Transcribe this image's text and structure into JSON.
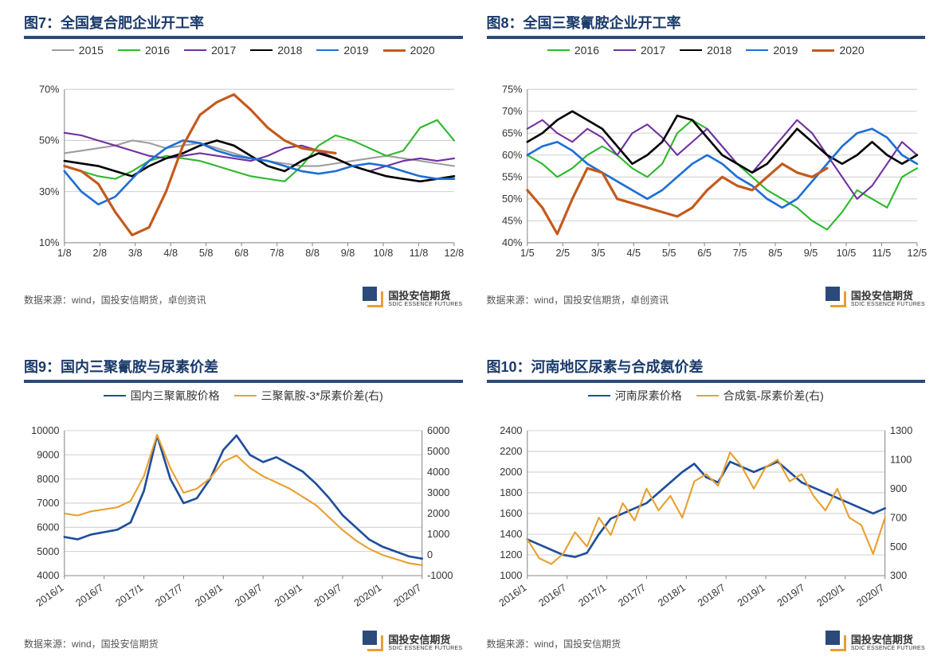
{
  "logo": {
    "cn": "国投安信期货",
    "en": "SDIC ESSENCE FUTURES"
  },
  "panels": [
    {
      "id": "chart7",
      "title": "图7：全国复合肥企业开工率",
      "source": "数据来源：wind，国投安信期货，卓创资讯",
      "type": "line",
      "y_unit": "%",
      "ylim": [
        10,
        70
      ],
      "ytick_step": 20,
      "x_labels": [
        "1/8",
        "2/8",
        "3/8",
        "4/8",
        "5/8",
        "6/8",
        "7/8",
        "8/8",
        "9/8",
        "10/8",
        "11/8",
        "12/8"
      ],
      "series": [
        {
          "name": "2015",
          "color": "#9e9e9e",
          "width": 2,
          "values": [
            45,
            46,
            47,
            48,
            50,
            49,
            47,
            48,
            49,
            47,
            45,
            43,
            42,
            41,
            40,
            40,
            41,
            42,
            43,
            44,
            43,
            42,
            41,
            40
          ]
        },
        {
          "name": "2016",
          "color": "#2eb82e",
          "width": 2,
          "values": [
            40,
            38,
            36,
            35,
            38,
            42,
            44,
            43,
            42,
            40,
            38,
            36,
            35,
            34,
            40,
            48,
            52,
            50,
            47,
            44,
            46,
            55,
            58,
            50
          ]
        },
        {
          "name": "2017",
          "color": "#7030a0",
          "width": 2,
          "values": [
            53,
            52,
            50,
            48,
            46,
            44,
            43,
            44,
            45,
            44,
            43,
            42,
            44,
            47,
            48,
            46,
            43,
            40,
            38,
            40,
            42,
            43,
            42,
            43
          ]
        },
        {
          "name": "2018",
          "color": "#000000",
          "width": 2.5,
          "values": [
            42,
            41,
            40,
            38,
            36,
            40,
            43,
            45,
            48,
            50,
            48,
            44,
            40,
            38,
            42,
            45,
            43,
            40,
            38,
            36,
            35,
            34,
            35,
            36
          ]
        },
        {
          "name": "2019",
          "color": "#1f6fd4",
          "width": 2.5,
          "values": [
            38,
            30,
            25,
            28,
            35,
            42,
            47,
            50,
            49,
            46,
            44,
            43,
            42,
            40,
            38,
            37,
            38,
            40,
            41,
            40,
            38,
            36,
            35,
            35
          ]
        },
        {
          "name": "2020",
          "color": "#c45a1c",
          "width": 3,
          "values": [
            40,
            38,
            33,
            22,
            13,
            16,
            30,
            48,
            60,
            65,
            68,
            62,
            55,
            50,
            47,
            46,
            45
          ]
        }
      ]
    },
    {
      "id": "chart8",
      "title": "图8：全国三聚氰胺企业开工率",
      "source": "数据来源：wind，国投安信期货，卓创资讯",
      "type": "line",
      "y_unit": "%",
      "ylim": [
        40,
        75
      ],
      "ytick_step": 5,
      "x_labels": [
        "1/5",
        "2/5",
        "3/5",
        "4/5",
        "5/5",
        "6/5",
        "7/5",
        "8/5",
        "9/5",
        "10/5",
        "11/5",
        "12/5"
      ],
      "series": [
        {
          "name": "2016",
          "color": "#2eb82e",
          "width": 2,
          "values": [
            60,
            58,
            55,
            57,
            60,
            62,
            60,
            57,
            55,
            58,
            65,
            68,
            66,
            62,
            58,
            55,
            52,
            50,
            48,
            45,
            43,
            47,
            52,
            50,
            48,
            55,
            57
          ]
        },
        {
          "name": "2017",
          "color": "#7030a0",
          "width": 2,
          "values": [
            66,
            68,
            65,
            63,
            66,
            64,
            60,
            65,
            67,
            64,
            60,
            63,
            66,
            62,
            58,
            56,
            60,
            64,
            68,
            65,
            60,
            55,
            50,
            53,
            58,
            63,
            60
          ]
        },
        {
          "name": "2018",
          "color": "#000000",
          "width": 2.5,
          "values": [
            63,
            65,
            68,
            70,
            68,
            66,
            62,
            58,
            60,
            63,
            69,
            68,
            64,
            60,
            58,
            56,
            58,
            62,
            66,
            63,
            60,
            58,
            60,
            63,
            60,
            58,
            60
          ]
        },
        {
          "name": "2019",
          "color": "#1f6fd4",
          "width": 2.5,
          "values": [
            60,
            62,
            63,
            61,
            58,
            56,
            54,
            52,
            50,
            52,
            55,
            58,
            60,
            58,
            55,
            53,
            50,
            48,
            50,
            54,
            58,
            62,
            65,
            66,
            64,
            60,
            58
          ]
        },
        {
          "name": "2020",
          "color": "#c45a1c",
          "width": 3,
          "values": [
            52,
            48,
            42,
            50,
            57,
            56,
            50,
            49,
            48,
            47,
            46,
            48,
            52,
            55,
            53,
            52,
            55,
            58,
            56,
            55,
            57
          ]
        }
      ]
    },
    {
      "id": "chart9",
      "title": "图9：国内三聚氰胺与尿素价差",
      "source": "数据来源：wind，国投安信期货",
      "type": "line-dual",
      "ylim": [
        4000,
        10000
      ],
      "ytick_step": 1000,
      "ylim2": [
        -1000,
        6000
      ],
      "ytick_step2": 1000,
      "x_labels": [
        "2016/1",
        "2016/7",
        "2017/1",
        "2017/7",
        "2018/1",
        "2018/7",
        "2019/1",
        "2019/7",
        "2020/1",
        "2020/7"
      ],
      "x_rotate": -35,
      "series": [
        {
          "name": "国内三聚氰胺价格",
          "color": "#1f4e9c",
          "width": 2.5,
          "axis": "left",
          "values": [
            5600,
            5500,
            5700,
            5800,
            5900,
            6200,
            7500,
            9800,
            8000,
            7000,
            7200,
            8000,
            9200,
            9800,
            9000,
            8700,
            8900,
            8600,
            8300,
            7800,
            7200,
            6500,
            6000,
            5500,
            5200,
            5000,
            4800,
            4700
          ]
        },
        {
          "name": "三聚氰胺-3*尿素价差(右)",
          "color": "#e8a030",
          "width": 2,
          "axis": "right",
          "values": [
            2000,
            1900,
            2100,
            2200,
            2300,
            2600,
            3800,
            5800,
            4200,
            3000,
            3200,
            3700,
            4500,
            4800,
            4200,
            3800,
            3500,
            3200,
            2800,
            2400,
            1800,
            1200,
            700,
            300,
            0,
            -200,
            -400,
            -500
          ]
        }
      ]
    },
    {
      "id": "chart10",
      "title": "图10：河南地区尿素与合成氨价差",
      "source": "数据来源：wind，国投安信期货",
      "type": "line-dual",
      "ylim": [
        1000,
        2400
      ],
      "ytick_step": 200,
      "ylim2": [
        300,
        1300
      ],
      "ytick_step2": 200,
      "x_labels": [
        "2016/1",
        "2016/7",
        "2017/1",
        "2017/7",
        "2018/1",
        "2018/7",
        "2019/1",
        "2019/7",
        "2020/1",
        "2020/7"
      ],
      "x_rotate": -35,
      "series": [
        {
          "name": "河南尿素价格",
          "color": "#1f4e9c",
          "width": 2.5,
          "axis": "left",
          "values": [
            1350,
            1300,
            1250,
            1200,
            1180,
            1220,
            1400,
            1550,
            1600,
            1650,
            1700,
            1800,
            1900,
            2000,
            2080,
            1950,
            1900,
            2100,
            2050,
            2000,
            2050,
            2100,
            2000,
            1900,
            1850,
            1800,
            1750,
            1700,
            1650,
            1600,
            1650
          ]
        },
        {
          "name": "合成氨-尿素价差(右)",
          "color": "#e8a030",
          "width": 2,
          "axis": "right",
          "values": [
            550,
            420,
            380,
            450,
            600,
            500,
            700,
            580,
            800,
            680,
            900,
            750,
            850,
            700,
            950,
            1000,
            920,
            1150,
            1050,
            900,
            1050,
            1100,
            950,
            1000,
            850,
            750,
            900,
            700,
            650,
            450,
            700
          ]
        }
      ]
    }
  ]
}
